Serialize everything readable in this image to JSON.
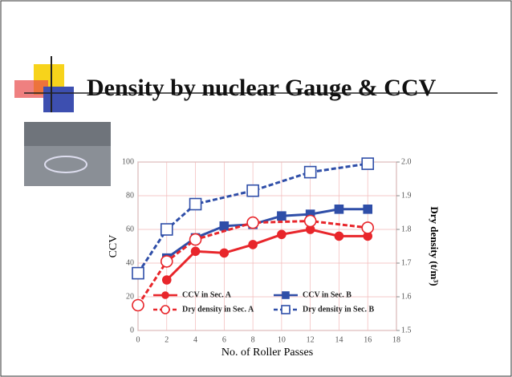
{
  "chart_data": {
    "type": "line",
    "title": "Density by nuclear Gauge & CCV",
    "xlabel": "No. of Roller Passes",
    "ylabel": "CCV",
    "y2label": "Dry density (t/m³)",
    "xlim": [
      0,
      18
    ],
    "xticks": [
      0,
      2,
      4,
      6,
      8,
      10,
      12,
      14,
      16,
      18
    ],
    "ylim": [
      0,
      100
    ],
    "yticks": [
      0,
      20,
      40,
      60,
      80,
      100
    ],
    "y2lim": [
      1.5,
      2.0
    ],
    "y2ticks": [
      1.5,
      1.6,
      1.7,
      1.8,
      1.9,
      {
        "value": 2.0,
        "label": "2.0"
      }
    ],
    "grid": true,
    "legend": "lower center",
    "series": [
      {
        "name": "CCV in Sec. A",
        "color": "#e8262b",
        "marker": "circle",
        "filled": true,
        "dashed": false,
        "x": [
          2,
          4,
          6,
          8,
          10,
          12,
          14,
          16
        ],
        "values": [
          30,
          47,
          46,
          51,
          57,
          60,
          56,
          56
        ]
      },
      {
        "name": "CCV in Sec. B",
        "color": "#2f4ea8",
        "marker": "square",
        "filled": true,
        "dashed": false,
        "x": [
          2,
          4,
          6,
          8,
          10,
          12,
          14,
          16
        ],
        "values": [
          43,
          55,
          62,
          63,
          68,
          69,
          72,
          72
        ]
      },
      {
        "name": "Dry density in Sec. A",
        "color": "#e8262b",
        "marker": "circle",
        "filled": false,
        "dashed": true,
        "axis": "y2",
        "x": [
          0,
          2,
          4,
          8,
          12,
          16
        ],
        "values": [
          1.575,
          1.705,
          1.77,
          1.82,
          1.825,
          1.805
        ]
      },
      {
        "name": "Dry density in Sec. B",
        "color": "#2f4ea8",
        "marker": "square",
        "filled": false,
        "dashed": true,
        "axis": "y2",
        "x": [
          0,
          2,
          4,
          8,
          12,
          16
        ],
        "values": [
          1.67,
          1.8,
          1.875,
          1.915,
          1.97,
          1.995
        ]
      }
    ]
  }
}
